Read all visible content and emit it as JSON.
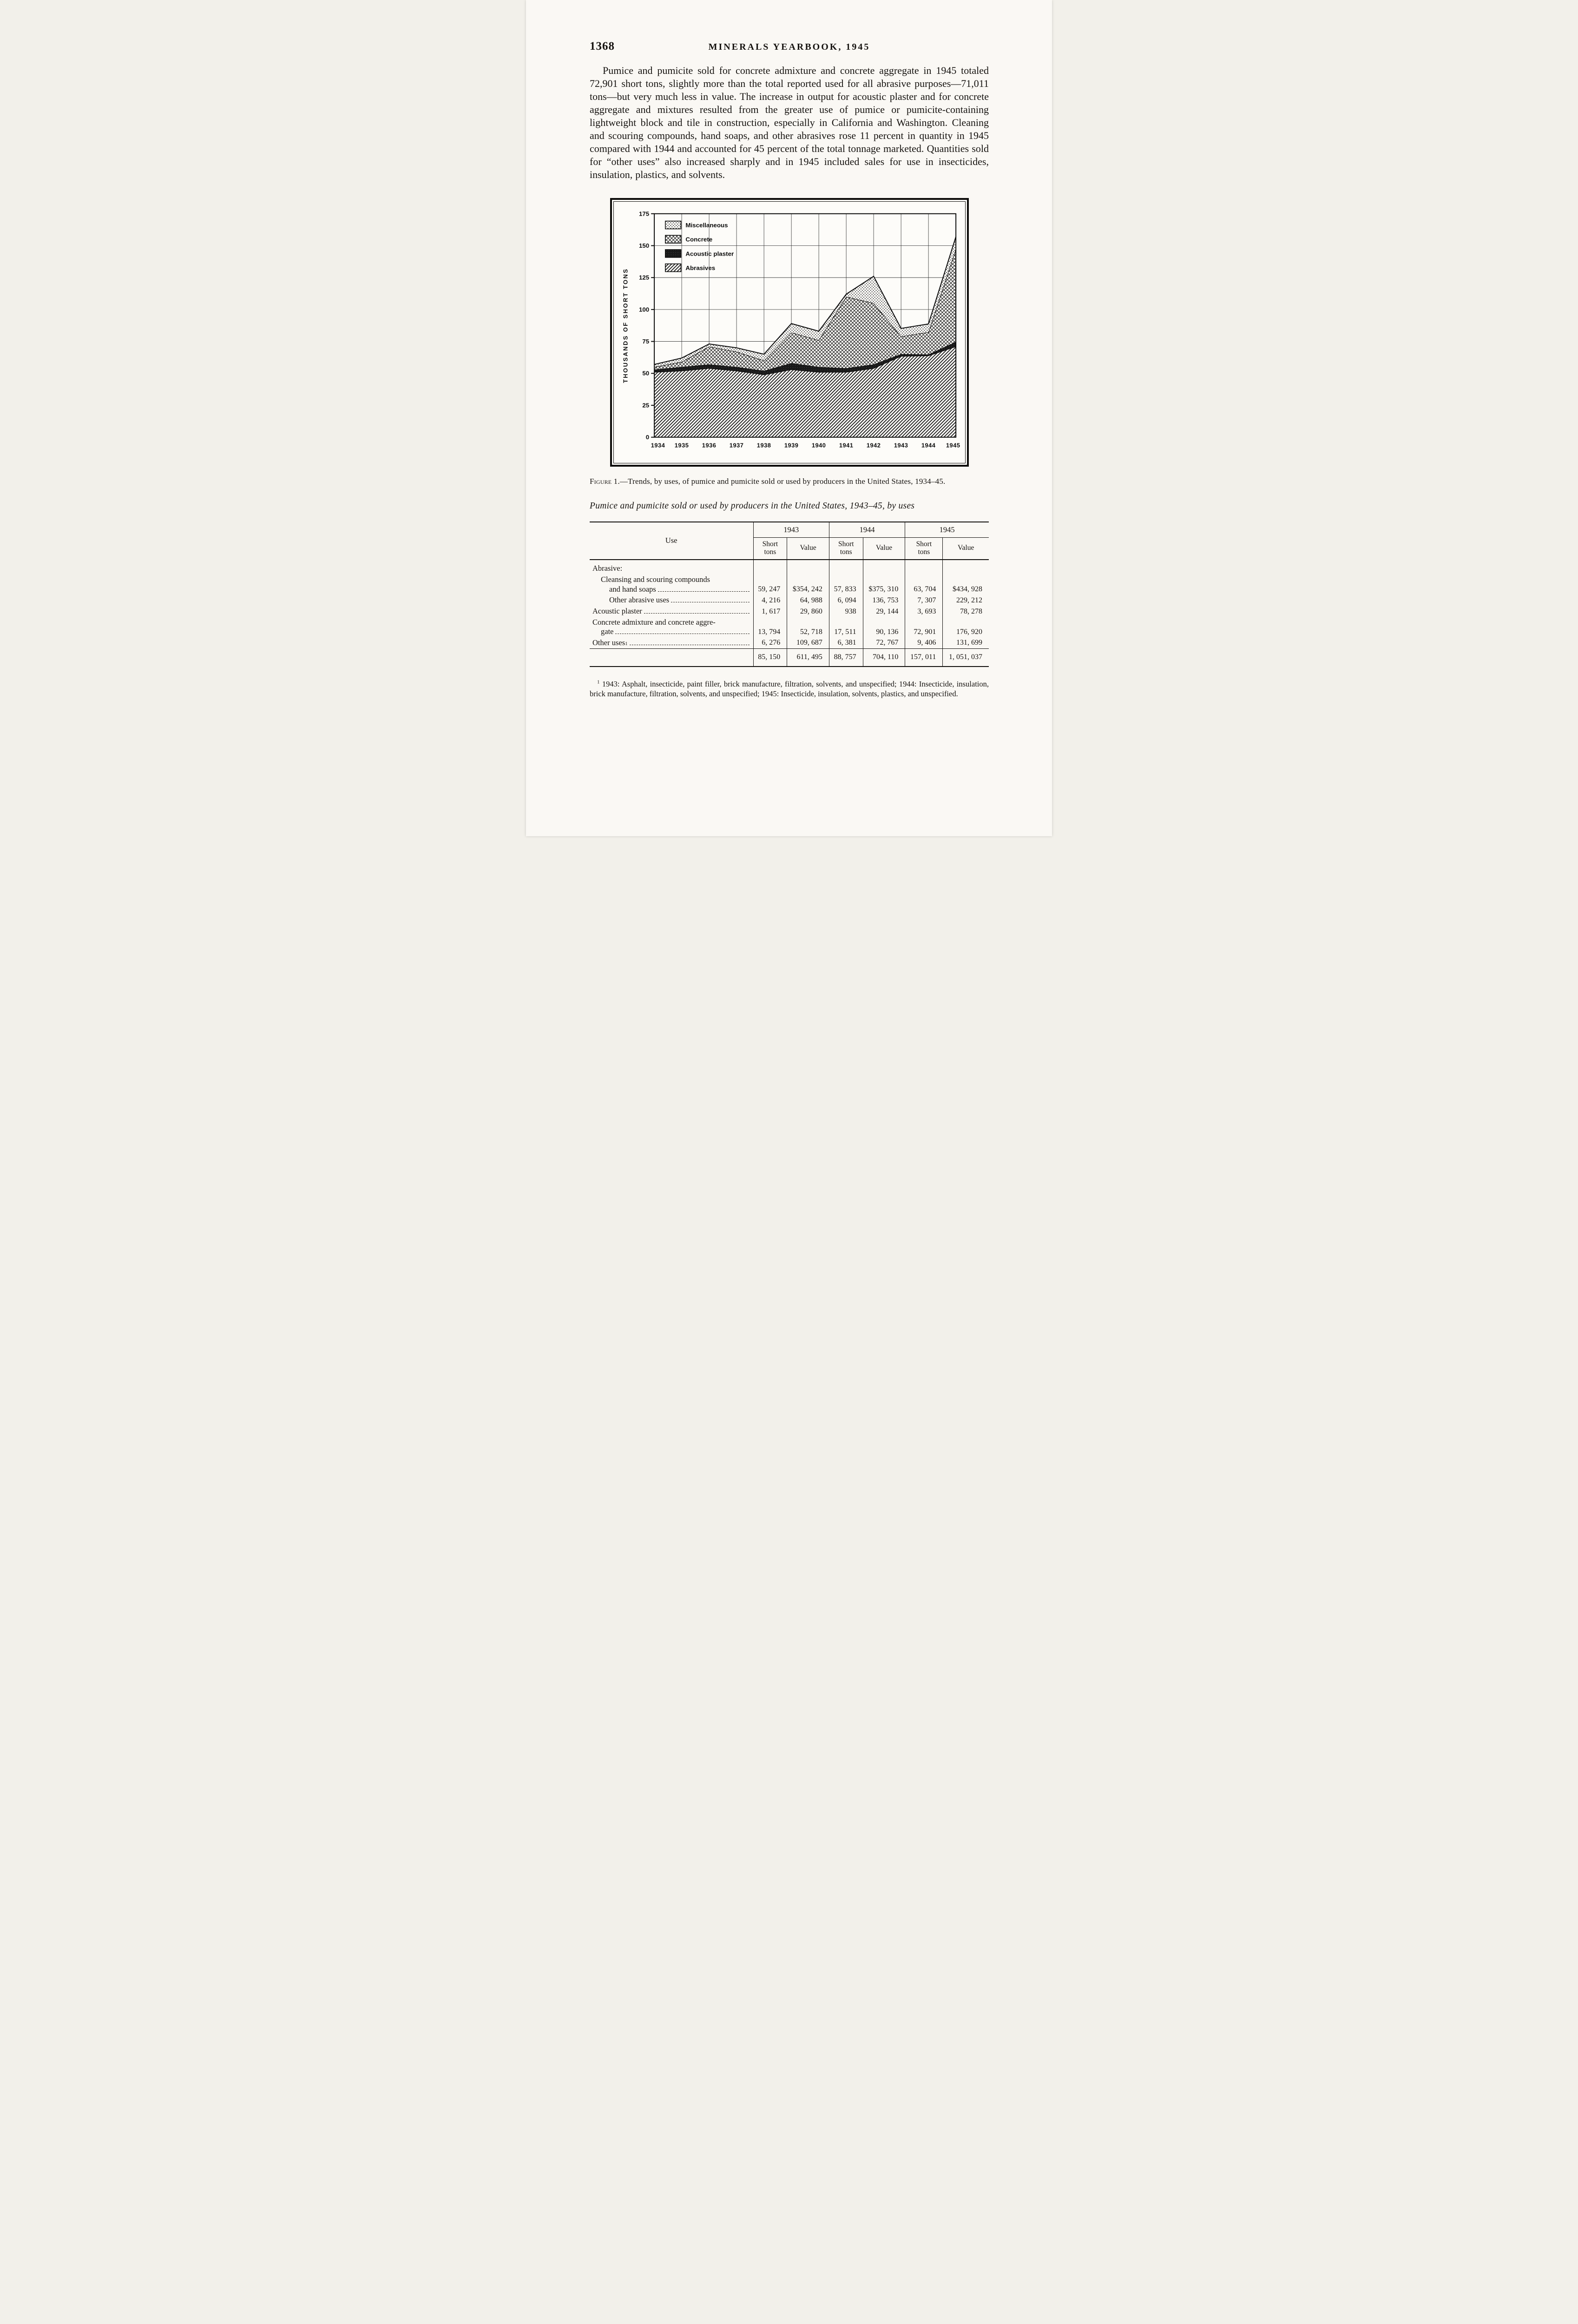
{
  "page": {
    "page_number": "1368",
    "running_title": "MINERALS YEARBOOK, 1945",
    "body_paragraph": "Pumice and pumicite sold for concrete admixture and concrete aggregate in 1945 totaled 72,901 short tons, slightly more than the total reported used for all abrasive purposes—71,011 tons—but very much less in value.  The increase in output for acoustic plaster and for concrete aggregate and mixtures resulted from the greater use of pumice or pumicite-containing lightweight block and tile in construction, especially in California and Washington.  Cleaning and scouring compounds, hand soaps, and other abrasives rose 11 percent in quantity in 1945 compared with 1944 and accounted for 45 percent of the total tonnage marketed.  Quantities sold for “other uses” also increased sharply and in 1945 included sales for use in insecticides, insulation, plastics, and solvents."
  },
  "figure": {
    "caption_label": "Figure 1.",
    "caption_text": "—Trends, by uses, of pumice and pumicite sold or used by producers in the United States, 1934–45.",
    "legend": [
      {
        "label": "Miscellaneous",
        "fill": "dots"
      },
      {
        "label": "Concrete",
        "fill": "cross"
      },
      {
        "label": "Acoustic plaster",
        "fill": "solid"
      },
      {
        "label": "Abrasives",
        "fill": "hatch"
      }
    ]
  },
  "chart_data": {
    "type": "area",
    "stacked": true,
    "title": "",
    "xlabel": "",
    "ylabel": "THOUSANDS OF SHORT TONS",
    "ylim": [
      0,
      175
    ],
    "yticks": [
      0,
      25,
      50,
      75,
      100,
      125,
      150,
      175
    ],
    "grid": true,
    "legend_position": "top-left",
    "x": [
      1934,
      1935,
      1936,
      1937,
      1938,
      1939,
      1940,
      1941,
      1942,
      1943,
      1944,
      1945
    ],
    "series": [
      {
        "name": "Abrasives",
        "fill": "hatch",
        "values": [
          51,
          52,
          54,
          52,
          49,
          53,
          51,
          51,
          54,
          63.5,
          63.9,
          71.0
        ]
      },
      {
        "name": "Acoustic plaster",
        "fill": "solid",
        "values": [
          2,
          3,
          3,
          3,
          3,
          5,
          4,
          3,
          3,
          1.6,
          0.9,
          3.7
        ]
      },
      {
        "name": "Concrete",
        "fill": "cross",
        "values": [
          2,
          4,
          14,
          12,
          8,
          24,
          21,
          56,
          48,
          13.8,
          17.5,
          72.9
        ]
      },
      {
        "name": "Miscellaneous",
        "fill": "dots",
        "values": [
          2,
          3,
          2,
          3,
          5,
          7,
          7,
          2,
          21,
          6.3,
          6.4,
          9.4
        ]
      }
    ]
  },
  "table": {
    "title": "Pumice and pumicite sold or used by producers in the United States, 1943–45, by uses",
    "use_header": "Use",
    "year_headers": [
      "1943",
      "1944",
      "1945"
    ],
    "subheaders": [
      "Short\ntons",
      "Value"
    ],
    "rows": [
      {
        "lines": [
          "Abrasive:"
        ],
        "indents": [
          0
        ],
        "leader": false,
        "values": null
      },
      {
        "lines": [
          "Cleansing and scouring compounds",
          "and hand soaps"
        ],
        "indents": [
          1,
          2
        ],
        "leader": true,
        "values": [
          "59, 247",
          "$354, 242",
          "57, 833",
          "$375, 310",
          "63, 704",
          "$434, 928"
        ]
      },
      {
        "lines": [
          "Other abrasive uses"
        ],
        "indents": [
          2
        ],
        "leader": true,
        "values": [
          "4, 216",
          "64, 988",
          "6, 094",
          "136, 753",
          "7, 307",
          "229, 212"
        ]
      },
      {
        "lines": [
          "Acoustic plaster"
        ],
        "indents": [
          0
        ],
        "leader": true,
        "values": [
          "1, 617",
          "29, 860",
          "938",
          "29, 144",
          "3, 693",
          "78, 278"
        ]
      },
      {
        "lines": [
          "Concrete admixture and concrete aggre-",
          "gate"
        ],
        "indents": [
          0,
          1
        ],
        "leader": true,
        "values": [
          "13, 794",
          "52, 718",
          "17, 511",
          "90, 136",
          "72, 901",
          "176, 920"
        ]
      },
      {
        "lines": [
          "Other uses"
        ],
        "sup": "1",
        "indents": [
          0
        ],
        "leader": true,
        "values": [
          "6, 276",
          "109, 687",
          "6, 381",
          "72, 767",
          "9, 406",
          "131, 699"
        ]
      }
    ],
    "total_values": [
      "85, 150",
      "611, 495",
      "88, 757",
      "704, 110",
      "157, 011",
      "1, 051, 037"
    ],
    "footnote_sup": "1",
    "footnote_text": "1943: Asphalt, insecticide, paint filler, brick manufacture, filtration, solvents, and unspecified; 1944: Insecticide, insulation, brick manufacture, filtration, solvents, and unspecified; 1945: Insecticide, insulation, solvents, plastics, and unspecified."
  }
}
